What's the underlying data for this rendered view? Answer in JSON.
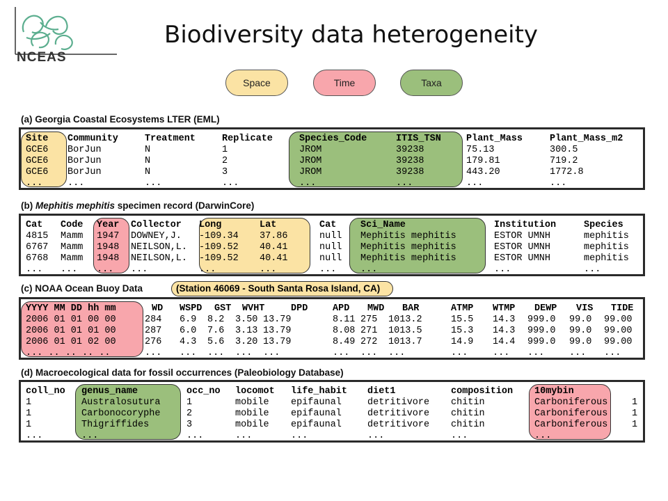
{
  "title": "Biodiversity data heterogeneity",
  "logo": {
    "text": "NCEAS",
    "icon": "nceas-swirl-icon"
  },
  "legend": {
    "space": "Space",
    "time": "Time",
    "taxa": "Taxa"
  },
  "colors": {
    "space": "#fbe3a4",
    "time": "#f8a6ac",
    "taxa": "#9bbf7c"
  },
  "tables": [
    {
      "caption": "(a) Georgia Coastal Ecosystems LTER (EML)",
      "header": [
        "Site",
        "Community",
        "Treatment",
        "Replicate",
        "Species_Code",
        "ITIS_TSN",
        "Plant_Mass",
        "Plant_Mass_m2"
      ],
      "rows": [
        [
          "GCE6",
          "BorJun",
          "N",
          "1",
          "JROM",
          "39238",
          "75.13",
          "300.5"
        ],
        [
          "GCE6",
          "BorJun",
          "N",
          "2",
          "JROM",
          "39238",
          "179.81",
          "719.2"
        ],
        [
          "GCE6",
          "BorJun",
          "N",
          "3",
          "JROM",
          "39238",
          "443.20",
          "1772.8"
        ],
        [
          "...",
          "...",
          "...",
          "...",
          "...",
          "...",
          "...",
          "..."
        ]
      ]
    },
    {
      "caption_prefix": "(b) ",
      "caption_italic": "Mephitis mephitis",
      "caption_suffix": " specimen record (DarwinCore)",
      "header": [
        "Cat",
        "Code",
        "Year",
        "Collector",
        "Long",
        "Lat",
        "Cat",
        "Sci_Name",
        "Institution",
        "Species"
      ],
      "rows": [
        [
          "4815",
          "Mamm",
          "1947",
          "DOWNEY,J.",
          "-109.34",
          "37.86",
          "null",
          "Mephitis mephitis",
          "ESTOR UMNH",
          "mephitis"
        ],
        [
          "6767",
          "Mamm",
          "1948",
          "NEILSON,L.",
          "-109.52",
          "40.41",
          "null",
          "Mephitis mephitis",
          "ESTOR UMNH",
          "mephitis"
        ],
        [
          "6768",
          "Mamm",
          "1948",
          "NEILSON,L.",
          "-109.52",
          "40.41",
          "null",
          "Mephitis mephitis",
          "ESTOR UMNH",
          "mephitis"
        ],
        [
          "...",
          "...",
          "...",
          "...",
          "...",
          "...",
          "...",
          "...",
          "...",
          "..."
        ]
      ]
    },
    {
      "caption": "(c) NOAA Ocean Buoy Data",
      "station": "(Station 46069 - South Santa Rosa Island, CA)",
      "header": [
        "YYYY MM DD hh mm",
        "WD",
        "WSPD",
        "GST",
        "WVHT",
        "DPD",
        "APD",
        "MWD",
        "BAR",
        "ATMP",
        "WTMP",
        "DEWP",
        "VIS",
        "TIDE"
      ],
      "rows": [
        [
          "2006 01 01 00 00",
          "284",
          "6.9",
          "8.2",
          "3.50",
          "13.79",
          "8.11",
          "275",
          "1013.2",
          "15.5",
          "14.3",
          "999.0",
          "99.0",
          "99.00"
        ],
        [
          "2006 01 01 01 00",
          "287",
          "6.0",
          "7.6",
          "3.13",
          "13.79",
          "8.08",
          "271",
          "1013.5",
          "15.3",
          "14.3",
          "999.0",
          "99.0",
          "99.00"
        ],
        [
          "2006 01 01 02 00",
          "276",
          "4.3",
          "5.6",
          "3.20",
          "13.79",
          "8.49",
          "272",
          "1013.7",
          "14.9",
          "14.4",
          "999.0",
          "99.0",
          "99.00"
        ],
        [
          "... .. .. .. ..",
          "...",
          "...",
          "...",
          "...",
          "...",
          "...",
          "...",
          "...",
          "...",
          "...",
          "...",
          "...",
          "..."
        ]
      ]
    },
    {
      "caption": "(d) Macroecological data for fossil occurrences (Paleobiology Database)",
      "header": [
        "coll_no",
        "genus_name",
        "occ_no",
        "locomot",
        "life_habit",
        "diet1",
        "composition",
        "10mybin",
        ""
      ],
      "rows": [
        [
          "1",
          "Australosutura",
          "1",
          "mobile",
          "epifaunal",
          "detritivore",
          "chitin",
          "Carboniferous",
          "1"
        ],
        [
          "1",
          "Carbonocoryphe",
          "2",
          "mobile",
          "epifaunal",
          "detritivore",
          "chitin",
          "Carboniferous",
          "1"
        ],
        [
          "1",
          "Thigriffides",
          "3",
          "mobile",
          "epifaunal",
          "detritivore",
          "chitin",
          "Carboniferous",
          "1"
        ],
        [
          "...",
          "...",
          "...",
          "...",
          "...",
          "...",
          "...",
          "...",
          ""
        ]
      ]
    }
  ]
}
